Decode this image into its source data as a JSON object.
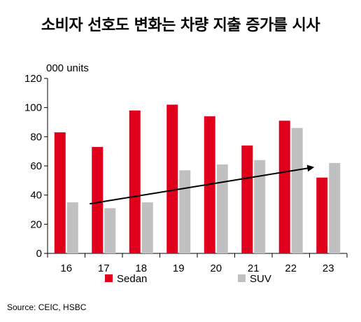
{
  "title": "소비자 선호도 변화는 차량 지출 증가를 시사",
  "source": "Source: CEIC, HSBC",
  "chart_data": {
    "type": "bar",
    "ylabel": "000 units",
    "ylim": [
      0,
      120
    ],
    "yticks": [
      0,
      20,
      40,
      60,
      80,
      100,
      120
    ],
    "categories": [
      "16",
      "17",
      "18",
      "19",
      "20",
      "21",
      "22",
      "23"
    ],
    "series": [
      {
        "name": "Sedan",
        "color": "#e0001b",
        "values": [
          83,
          73,
          98,
          102,
          94,
          74,
          91,
          52
        ]
      },
      {
        "name": "SUV",
        "color": "#c0c0c0",
        "values": [
          35,
          31,
          35,
          57,
          61,
          64,
          86,
          62
        ]
      }
    ],
    "trend_arrow": {
      "from": {
        "category": "17",
        "y": 34
      },
      "to": {
        "category": "23",
        "y": 59
      }
    },
    "grid": false,
    "legend_position": "bottom"
  }
}
